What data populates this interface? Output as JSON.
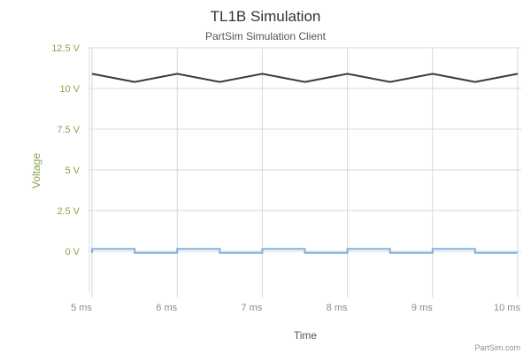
{
  "chart_data": {
    "type": "line",
    "title": "TL1B Simulation",
    "subtitle": "PartSim Simulation Client",
    "xlabel": "Time",
    "ylabel": "Voltage",
    "credit": "PartSim.com",
    "xlim": [
      5,
      10
    ],
    "ylim": [
      -2.5,
      12.5
    ],
    "x_ticks": [
      5,
      6,
      7,
      8,
      9,
      10
    ],
    "x_tick_labels": [
      "5 ms",
      "6 ms",
      "7 ms",
      "8 ms",
      "9 ms",
      "10 ms"
    ],
    "y_ticks": [
      0,
      2.5,
      5,
      7.5,
      10,
      12.5
    ],
    "y_tick_labels": [
      "0 V",
      "2.5 V",
      "5 V",
      "7.5 V",
      "10 V",
      "12.5 V"
    ],
    "grid": true,
    "colors": {
      "series_dark": "#3a3a3a",
      "series_light": "#7fb2e0",
      "axis_text": "#89a54e",
      "grid": "#d8d8d8"
    },
    "series": [
      {
        "color": "#3a3a3a",
        "x": [
          5,
          5.5,
          6,
          6.5,
          7,
          7.5,
          8,
          8.5,
          9,
          9.5,
          10
        ],
        "values": [
          10.9,
          10.4,
          10.9,
          10.4,
          10.9,
          10.4,
          10.9,
          10.4,
          10.9,
          10.4,
          10.9
        ]
      },
      {
        "color": "#7fb2e0",
        "x": [
          5,
          5,
          5.5,
          5.5,
          6,
          6,
          6.5,
          6.5,
          7,
          7,
          7.5,
          7.5,
          8,
          8,
          8.5,
          8.5,
          9,
          9,
          9.5,
          9.5,
          10
        ],
        "values": [
          -0.1,
          0.15,
          0.15,
          -0.1,
          -0.1,
          0.15,
          0.15,
          -0.1,
          -0.1,
          0.15,
          0.15,
          -0.1,
          -0.1,
          0.15,
          0.15,
          -0.1,
          -0.1,
          0.15,
          0.15,
          -0.1,
          -0.1
        ]
      }
    ]
  }
}
